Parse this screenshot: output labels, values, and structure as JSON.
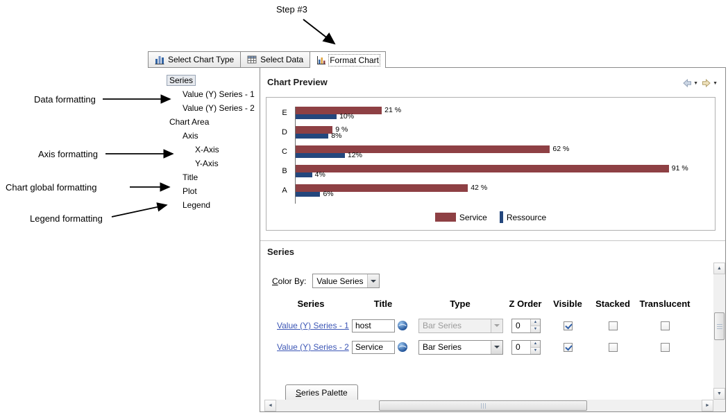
{
  "annotations": {
    "step_label": "Step #3",
    "side_labels": [
      "Data formatting",
      "Axis formatting",
      "Chart global formatting",
      "Legend formatting"
    ]
  },
  "tabs": {
    "items": [
      {
        "label": "Select Chart Type",
        "icon": "chart-type-icon",
        "active": false
      },
      {
        "label": "Select Data",
        "icon": "select-data-icon",
        "active": false
      },
      {
        "label": "Format Chart",
        "icon": "format-chart-icon",
        "active": true
      }
    ]
  },
  "format_tree": {
    "items": [
      {
        "label": "Series",
        "level": 0,
        "selected": true
      },
      {
        "label": "Value (Y) Series - 1",
        "level": 1,
        "selected": false
      },
      {
        "label": "Value (Y) Series - 2",
        "level": 1,
        "selected": false
      },
      {
        "label": "Chart Area",
        "level": 0,
        "selected": false
      },
      {
        "label": "Axis",
        "level": 1,
        "selected": false
      },
      {
        "label": "X-Axis",
        "level": 2,
        "selected": false
      },
      {
        "label": "Y-Axis",
        "level": 2,
        "selected": false
      },
      {
        "label": "Title",
        "level": 1,
        "selected": false
      },
      {
        "label": "Plot",
        "level": 1,
        "selected": false
      },
      {
        "label": "Legend",
        "level": 1,
        "selected": false
      }
    ]
  },
  "preview": {
    "title": "Chart Preview"
  },
  "chart_data": {
    "type": "bar",
    "orientation": "horizontal",
    "categories": [
      "E",
      "D",
      "C",
      "B",
      "A"
    ],
    "series": [
      {
        "name": "Service",
        "color": "#8e4044",
        "values": [
          21,
          9,
          62,
          91,
          42
        ],
        "labels": [
          "21 %",
          "9 %",
          "62 %",
          "91 %",
          "42 %"
        ]
      },
      {
        "name": "Ressource",
        "color": "#24477d",
        "values": [
          10,
          8,
          12,
          4,
          6
        ],
        "labels": [
          "10%",
          "8%",
          "12%",
          "4%",
          "6%"
        ]
      }
    ],
    "xlim": [
      0,
      100
    ],
    "grid": false,
    "legend_position": "bottom-center"
  },
  "series_panel": {
    "title": "Series",
    "color_by": {
      "label": "Color By:",
      "value": "Value Series"
    },
    "table": {
      "headers": [
        "Series",
        "Title",
        "Type",
        "Z Order",
        "Visible",
        "Stacked",
        "Translucent"
      ],
      "rows": [
        {
          "series_link": "Value (Y) Series - 1",
          "title_value": "host",
          "type_value": "Bar Series",
          "type_enabled": false,
          "z_order": "0",
          "visible": true,
          "stacked": false,
          "translucent": false
        },
        {
          "series_link": "Value (Y) Series - 2",
          "title_value": "Service",
          "type_value": "Bar Series",
          "type_enabled": true,
          "z_order": "0",
          "visible": true,
          "stacked": false,
          "translucent": false
        }
      ]
    },
    "palette_tab_label": "Series Palette"
  },
  "colors": {
    "hyperlink": "#3c56b5",
    "series_service": "#8e4044",
    "series_ressource": "#24477d"
  }
}
